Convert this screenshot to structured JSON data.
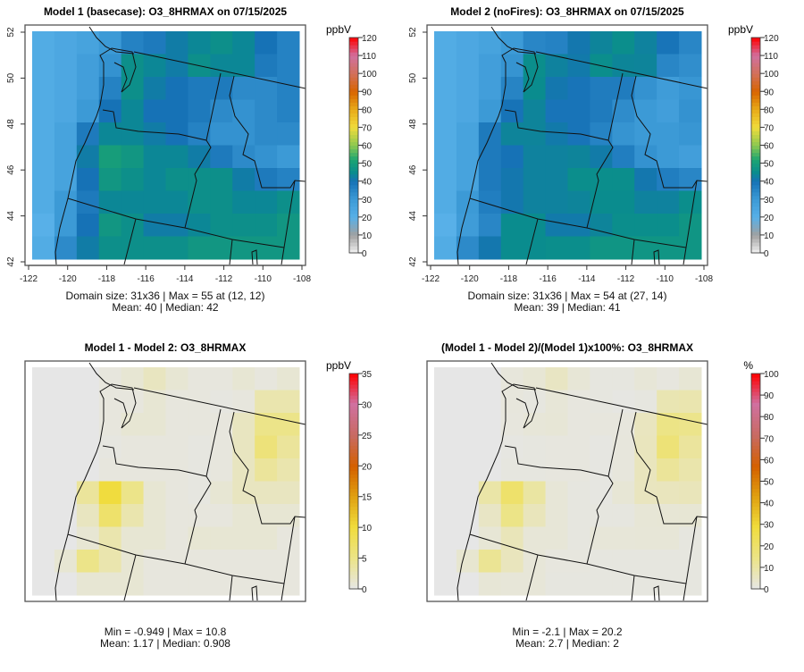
{
  "chart_data": [
    {
      "type": "heatmap",
      "title": "Model 1 (basecase): O3_8HRMAX on 07/15/2025",
      "units": "ppbV",
      "xlim": [
        -122,
        -108
      ],
      "ylim": [
        42,
        52
      ],
      "xticks": [
        -122,
        -120,
        -118,
        -116,
        -114,
        -112,
        -110,
        -108
      ],
      "yticks": [
        42,
        44,
        46,
        48,
        50,
        52
      ],
      "colorbar": {
        "min": 0,
        "max": 120,
        "ticks": [
          0,
          10,
          20,
          30,
          40,
          50,
          60,
          70,
          80,
          90,
          100,
          110,
          120
        ]
      },
      "stats": [
        "Domain size: 31x36 | Max = 55 at (12, 12)",
        "Mean: 40 |  Median: 42"
      ],
      "grid_source": "model1",
      "show_axes": true
    },
    {
      "type": "heatmap",
      "title": "Model 2 (noFires): O3_8HRMAX on 07/15/2025",
      "units": "ppbV",
      "xlim": [
        -122,
        -108
      ],
      "ylim": [
        42,
        52
      ],
      "xticks": [
        -122,
        -120,
        -118,
        -116,
        -114,
        -112,
        -110,
        -108
      ],
      "yticks": [
        42,
        44,
        46,
        48,
        50,
        52
      ],
      "colorbar": {
        "min": 0,
        "max": 120,
        "ticks": [
          0,
          10,
          20,
          30,
          40,
          50,
          60,
          70,
          80,
          90,
          100,
          110,
          120
        ]
      },
      "stats": [
        "Domain size: 31x36 | Max = 54 at (27, 14)",
        "Mean: 39 |  Median: 41"
      ],
      "grid_source": "model2",
      "show_axes": true
    },
    {
      "type": "heatmap",
      "title": "Model 1 - Model 2: O3_8HRMAX",
      "units": "ppbV",
      "xlim": [
        -122,
        -108
      ],
      "ylim": [
        42,
        52
      ],
      "colorbar": {
        "min": 0,
        "max": 35,
        "ticks": [
          0,
          5,
          10,
          15,
          20,
          25,
          30,
          35
        ]
      },
      "stats": [
        "Min = -0.949 | Max = 10.8",
        "Mean: 1.17 |  Median: 0.908"
      ],
      "grid_source": "diff",
      "show_axes": false
    },
    {
      "type": "heatmap",
      "title": "(Model 1 - Model 2)/(Model 1)x100%: O3_8HRMAX",
      "units": "%",
      "xlim": [
        -122,
        -108
      ],
      "ylim": [
        42,
        52
      ],
      "colorbar": {
        "min": 0,
        "max": 100,
        "ticks": [
          0,
          10,
          20,
          30,
          40,
          50,
          60,
          70,
          80,
          90,
          100
        ]
      },
      "stats": [
        "Min = -2.1 | Max = 20.2",
        "Mean: 2.7 |  Median: 2"
      ],
      "grid_source": "pct",
      "show_axes": false
    }
  ],
  "grids": {
    "note_rows": "rows from north (52) to south (42), cols from west (-122) to east (-108), approximate coarse values",
    "model1": [
      [
        22,
        24,
        26,
        30,
        36,
        38,
        42,
        44,
        46,
        44,
        40,
        36
      ],
      [
        22,
        24,
        28,
        32,
        46,
        44,
        42,
        46,
        44,
        44,
        38,
        36
      ],
      [
        22,
        24,
        28,
        36,
        46,
        42,
        40,
        38,
        38,
        34,
        34,
        36
      ],
      [
        22,
        24,
        30,
        40,
        44,
        40,
        40,
        38,
        34,
        32,
        34,
        36
      ],
      [
        22,
        26,
        38,
        44,
        44,
        42,
        40,
        36,
        32,
        32,
        34,
        34
      ],
      [
        22,
        26,
        42,
        50,
        48,
        44,
        44,
        42,
        38,
        34,
        32,
        30
      ],
      [
        22,
        26,
        40,
        48,
        46,
        44,
        46,
        46,
        46,
        42,
        38,
        36
      ],
      [
        22,
        30,
        38,
        44,
        44,
        44,
        44,
        46,
        46,
        44,
        44,
        46
      ],
      [
        20,
        30,
        40,
        48,
        46,
        42,
        42,
        44,
        46,
        46,
        46,
        48
      ],
      [
        22,
        34,
        42,
        46,
        46,
        46,
        46,
        48,
        48,
        48,
        48,
        48
      ]
    ],
    "diff": [
      [
        0,
        0,
        0,
        0.5,
        1,
        2,
        1,
        0.5,
        0.5,
        1,
        0.5,
        1
      ],
      [
        0,
        0,
        0,
        0.5,
        0.5,
        1,
        0.5,
        0.5,
        0.3,
        0.5,
        3,
        3
      ],
      [
        0,
        0,
        0,
        0.5,
        1,
        1,
        0.5,
        0.5,
        0.5,
        2,
        5,
        5
      ],
      [
        0,
        0,
        0,
        0.3,
        0.5,
        0.5,
        0.5,
        0.3,
        0.5,
        2,
        6,
        4
      ],
      [
        0,
        0,
        0,
        0.5,
        0.5,
        0.5,
        0.5,
        0.3,
        0.5,
        2,
        4,
        3
      ],
      [
        0,
        0,
        4,
        10,
        5,
        1,
        0.5,
        0.3,
        1,
        2,
        2,
        2
      ],
      [
        0,
        0,
        2,
        7,
        3,
        1,
        0.5,
        0.5,
        0.5,
        1,
        1,
        1
      ],
      [
        0,
        0,
        1,
        3,
        1,
        1,
        0.5,
        1,
        1,
        1,
        1,
        0.5
      ],
      [
        0,
        1,
        5,
        3,
        1,
        0.5,
        0.5,
        0.5,
        0.5,
        0.5,
        0.5,
        0.5
      ],
      [
        0,
        0,
        1,
        1,
        1,
        0.5,
        0.5,
        0.5,
        0.5,
        0.5,
        0.5,
        0.5
      ]
    ]
  },
  "colors": {
    "abs": [
      [
        0,
        "#f2f2f2"
      ],
      [
        10,
        "#a0a0a0"
      ],
      [
        20,
        "#58b0e8"
      ],
      [
        30,
        "#3c9ad6"
      ],
      [
        40,
        "#1672b6"
      ],
      [
        45,
        "#0a8c8e"
      ],
      [
        52,
        "#1ca472"
      ],
      [
        60,
        "#8cc850"
      ],
      [
        70,
        "#f0dc3c"
      ],
      [
        80,
        "#e8aa18"
      ],
      [
        90,
        "#d86400"
      ],
      [
        100,
        "#d2705a"
      ],
      [
        110,
        "#d070a0"
      ],
      [
        120,
        "#ff0000"
      ]
    ],
    "rel": [
      [
        0,
        "#e6e6e6"
      ],
      [
        0.14,
        "#ece48a"
      ],
      [
        0.29,
        "#f0dc3c"
      ],
      [
        0.43,
        "#e0a010"
      ],
      [
        0.57,
        "#d46000"
      ],
      [
        0.71,
        "#c86a60"
      ],
      [
        0.86,
        "#d070a0"
      ],
      [
        1,
        "#ff0000"
      ]
    ]
  }
}
